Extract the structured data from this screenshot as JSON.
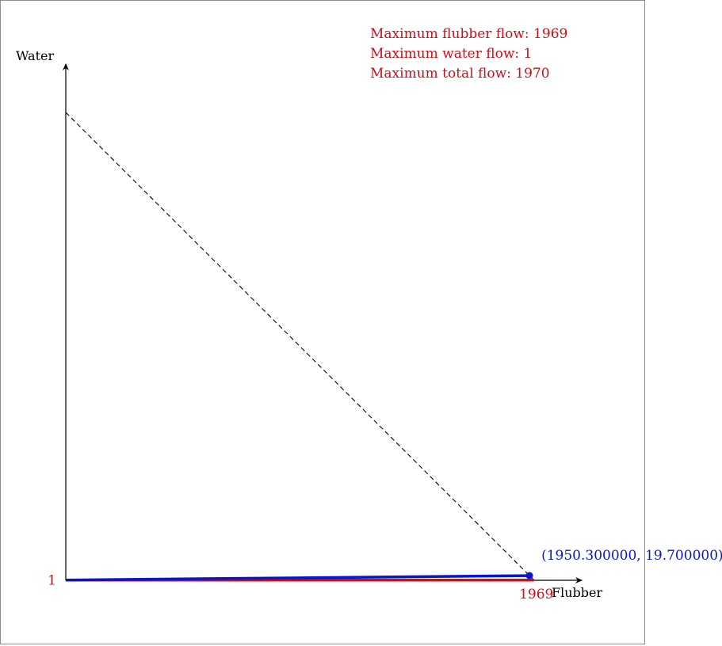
{
  "colors": {
    "red": "#c8101a",
    "blue": "#0a14c8",
    "axis": "#000000",
    "frame": "#8c8c8c"
  },
  "summary": {
    "flubber": "Maximum flubber flow: 1969",
    "water": "Maximum water flow: 1",
    "total": "Maximum total flow: 1970"
  },
  "chart_data": {
    "type": "line",
    "xlabel": "Flubber",
    "ylabel": "Water",
    "xlim": [
      0,
      2100
    ],
    "ylim": [
      0,
      2100
    ],
    "x_tick": {
      "value": 1969,
      "label": "1969"
    },
    "y_tick": {
      "value": 1,
      "label": "1"
    },
    "total_flow_line": {
      "x": [
        0,
        1970
      ],
      "y": [
        1970,
        0
      ],
      "style": "dashed"
    },
    "flubber_segment": {
      "x": [
        0,
        1969
      ],
      "y": [
        1,
        1
      ]
    },
    "optimal_path": {
      "x": [
        0,
        1950.3
      ],
      "y": [
        1,
        19.7
      ]
    },
    "optimal_point": {
      "x": 1950.3,
      "y": 19.7,
      "label": "(1950.300000, 19.700000)"
    }
  }
}
